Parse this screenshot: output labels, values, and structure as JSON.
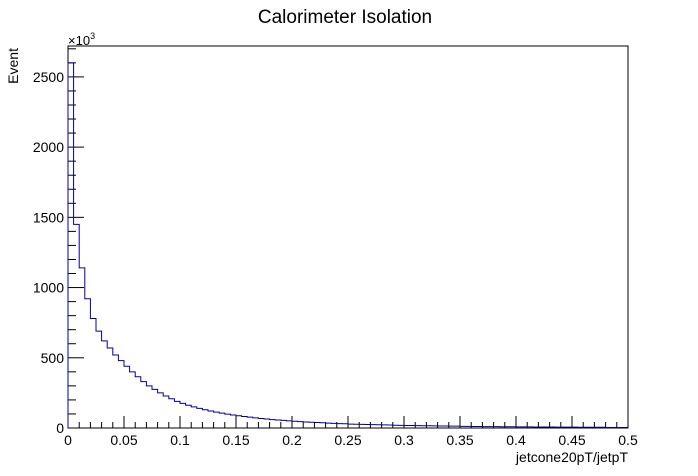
{
  "chart_data": {
    "type": "histogram",
    "title": "Calorimeter Isolation",
    "xlabel": "jetcone20pT/jetpT",
    "ylabel": "Event",
    "y_multiplier_base": "×10",
    "y_multiplier_exp": "3",
    "xlim": [
      0,
      0.5
    ],
    "ylim": [
      0,
      2720
    ],
    "bin_width": 0.005,
    "line_color": "#0000a0",
    "x_ticks": [
      0,
      0.05,
      0.1,
      0.15,
      0.2,
      0.25,
      0.3,
      0.35,
      0.4,
      0.45,
      0.5
    ],
    "x_tick_labels": [
      "0",
      "0.05",
      "0.1",
      "0.15",
      "0.2",
      "0.25",
      "0.3",
      "0.35",
      "0.4",
      "0.45",
      "0.5"
    ],
    "y_ticks": [
      0,
      500,
      1000,
      1500,
      2000,
      2500
    ],
    "y_tick_labels": [
      "0",
      "500",
      "1000",
      "1500",
      "2000",
      "2500"
    ],
    "values": [
      2600,
      1450,
      1140,
      920,
      780,
      690,
      620,
      570,
      520,
      480,
      440,
      400,
      365,
      330,
      300,
      275,
      250,
      228,
      208,
      190,
      175,
      162,
      150,
      140,
      130,
      121,
      113,
      106,
      99,
      93,
      87,
      82,
      77,
      72,
      68,
      64,
      60,
      57,
      54,
      51,
      48,
      45,
      43,
      41,
      39,
      37,
      35,
      33,
      31,
      30,
      28,
      27,
      26,
      25,
      24,
      23,
      22,
      21,
      20,
      19,
      18,
      18,
      17,
      16,
      16,
      15,
      14,
      14,
      13,
      13,
      12,
      12,
      11,
      11,
      10,
      10,
      10,
      9,
      9,
      9,
      8,
      8,
      8,
      7,
      7,
      7,
      7,
      6,
      6,
      6,
      6,
      5,
      5,
      5,
      5,
      5,
      4,
      4,
      4,
      4
    ]
  }
}
